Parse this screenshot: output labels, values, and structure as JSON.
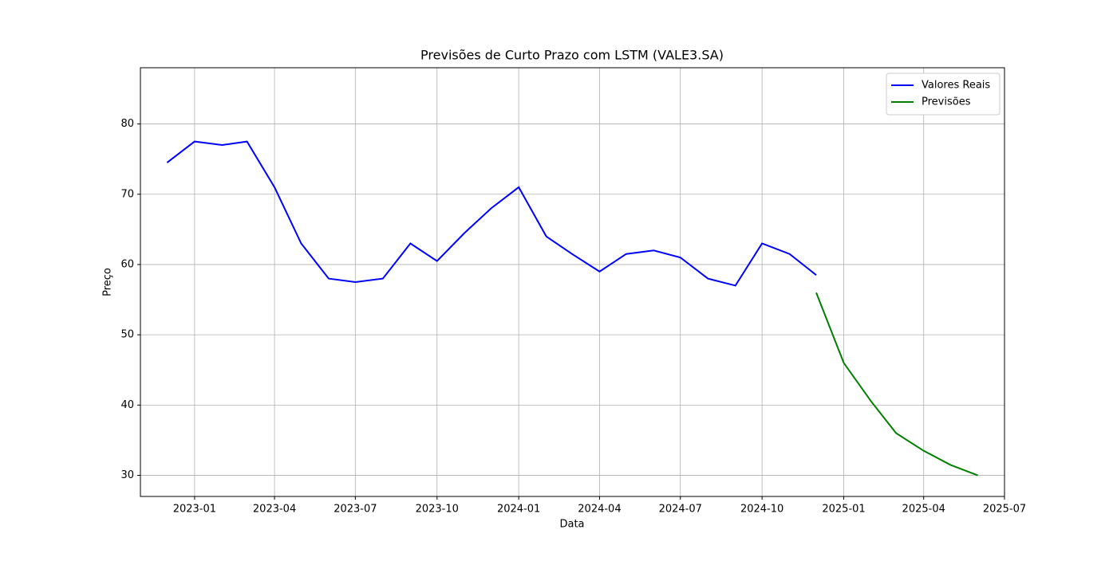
{
  "chart_data": {
    "type": "line",
    "title": "Previsões de Curto Prazo com LSTM (VALE3.SA)",
    "x_label": "Data",
    "y_label": "Preço",
    "x": [
      "2022-12",
      "2023-01",
      "2023-02",
      "2023-03",
      "2023-04",
      "2023-05",
      "2023-06",
      "2023-07",
      "2023-08",
      "2023-09",
      "2023-10",
      "2023-11",
      "2023-12",
      "2024-01",
      "2024-02",
      "2024-03",
      "2024-04",
      "2024-05",
      "2024-06",
      "2024-07",
      "2024-08",
      "2024-09",
      "2024-10",
      "2024-11",
      "2024-12",
      "2025-01",
      "2025-02",
      "2025-03",
      "2025-04",
      "2025-05",
      "2025-06"
    ],
    "series": [
      {
        "name": "Valores Reais",
        "color": "#0000ff",
        "values": [
          74.5,
          77.5,
          77,
          77.5,
          71,
          63,
          58,
          57.5,
          58,
          63,
          60.5,
          64.5,
          68,
          71,
          64,
          61.5,
          59,
          61.5,
          62,
          61,
          58,
          57,
          63,
          61.5,
          58.5,
          null,
          null,
          null,
          null,
          null,
          null
        ]
      },
      {
        "name": "Previsões",
        "color": "#008000",
        "values": [
          null,
          null,
          null,
          null,
          null,
          null,
          null,
          null,
          null,
          null,
          null,
          null,
          null,
          null,
          null,
          null,
          null,
          null,
          null,
          null,
          null,
          null,
          null,
          null,
          56,
          46,
          40.5,
          36,
          33.5,
          31.5,
          30
        ]
      }
    ],
    "xlim": [
      "2022-11",
      "2025-07"
    ],
    "xticks": [
      "2023-01",
      "2023-04",
      "2023-07",
      "2023-10",
      "2024-01",
      "2024-04",
      "2024-07",
      "2024-10",
      "2025-01",
      "2025-04",
      "2025-07"
    ],
    "ylim": [
      27,
      88
    ],
    "yticks": [
      30,
      40,
      50,
      60,
      70,
      80
    ],
    "grid": true,
    "legend": "upper right"
  }
}
